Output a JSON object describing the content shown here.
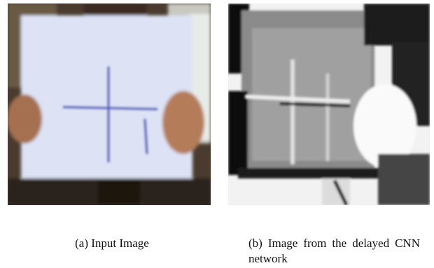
{
  "figure": {
    "subfigures": [
      {
        "caption": "(a) Input Image"
      },
      {
        "caption": "(b) Image from the delayed CNN network"
      }
    ]
  }
}
